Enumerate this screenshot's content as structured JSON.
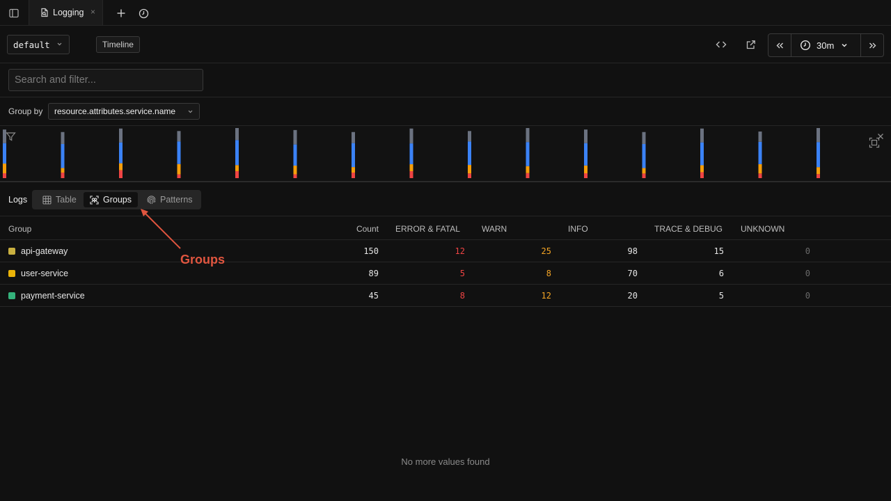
{
  "tab": {
    "title": "Logging",
    "close_glyph": "×"
  },
  "toolbar": {
    "source_select": "default",
    "timeline_label": "Timeline",
    "time_range": "30m"
  },
  "search": {
    "placeholder": "Search and filter...",
    "value": ""
  },
  "group_by": {
    "label": "Group by",
    "value": "resource.attributes.service.name"
  },
  "histogram": {
    "series_colors": {
      "error": "#ef4444",
      "warn": "#f59e0b",
      "info": "#3b82f6",
      "trace": "#6b7280"
    },
    "bars": [
      {
        "error": 0.1,
        "warn": 0.2,
        "info": 0.42,
        "trace": 0.28
      },
      {
        "error": 0.12,
        "warn": 0.1,
        "info": 0.52,
        "trace": 0.26
      },
      {
        "error": 0.16,
        "warn": 0.14,
        "info": 0.42,
        "trace": 0.28
      },
      {
        "error": 0.08,
        "warn": 0.22,
        "info": 0.48,
        "trace": 0.22
      },
      {
        "error": 0.14,
        "warn": 0.12,
        "info": 0.5,
        "trace": 0.24
      },
      {
        "error": 0.08,
        "warn": 0.18,
        "info": 0.44,
        "trace": 0.3
      },
      {
        "error": 0.12,
        "warn": 0.12,
        "info": 0.52,
        "trace": 0.24
      },
      {
        "error": 0.14,
        "warn": 0.14,
        "info": 0.42,
        "trace": 0.3
      },
      {
        "error": 0.1,
        "warn": 0.18,
        "info": 0.5,
        "trace": 0.22
      },
      {
        "error": 0.1,
        "warn": 0.14,
        "info": 0.48,
        "trace": 0.28
      },
      {
        "error": 0.1,
        "warn": 0.16,
        "info": 0.46,
        "trace": 0.28
      },
      {
        "error": 0.1,
        "warn": 0.12,
        "info": 0.52,
        "trace": 0.26
      },
      {
        "error": 0.12,
        "warn": 0.14,
        "info": 0.46,
        "trace": 0.28
      },
      {
        "error": 0.1,
        "warn": 0.2,
        "info": 0.48,
        "trace": 0.22
      },
      {
        "error": 0.08,
        "warn": 0.14,
        "info": 0.5,
        "trace": 0.28
      }
    ]
  },
  "modes": {
    "label": "Logs",
    "items": [
      {
        "label": "Table",
        "icon": "table-icon",
        "active": false
      },
      {
        "label": "Groups",
        "icon": "groups-icon",
        "active": true
      },
      {
        "label": "Patterns",
        "icon": "fingerprint-icon",
        "active": false
      }
    ]
  },
  "annotation": {
    "text": "Groups",
    "color": "#e0553f"
  },
  "table": {
    "columns": [
      "Group",
      "Count",
      "ERROR & FATAL",
      "WARN",
      "INFO",
      "TRACE & DEBUG",
      "UNKNOWN"
    ],
    "rows": [
      {
        "group": "api-gateway",
        "color": "#c9b040",
        "count": "150",
        "error": "12",
        "warn": "25",
        "info": "98",
        "trace": "15",
        "unknown": "0"
      },
      {
        "group": "user-service",
        "color": "#eab308",
        "count": "89",
        "error": "5",
        "warn": "8",
        "info": "70",
        "trace": "6",
        "unknown": "0"
      },
      {
        "group": "payment-service",
        "color": "#34b27b",
        "count": "45",
        "error": "8",
        "warn": "12",
        "info": "20",
        "trace": "5",
        "unknown": "0"
      }
    ]
  },
  "empty_message": "No more values found"
}
